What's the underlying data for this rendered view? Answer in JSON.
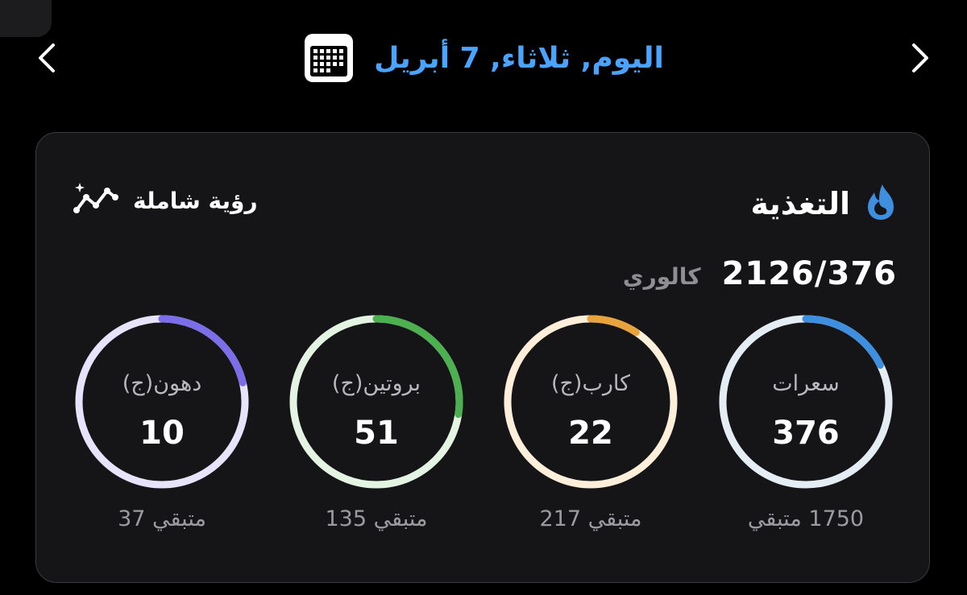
{
  "header": {
    "date_label": "اليوم, ثلاثاء, 7 أبريل",
    "accent_color": "#4aa3ff"
  },
  "nutrition": {
    "title": "التغذية",
    "overview_label": "رؤية شاملة",
    "calories_total": "2126/376",
    "calories_unit": "كالوري",
    "rings": [
      {
        "key": "calories",
        "label": "سعرات",
        "value": "376",
        "remaining": "1750 متبقي",
        "progress": 0.177,
        "color": "#3f8fe0",
        "track_color": "#e4edf4"
      },
      {
        "key": "carbs",
        "label": "كارب(ج)",
        "value": "22",
        "remaining": "متبقي 217",
        "progress": 0.092,
        "color": "#e8a33c",
        "track_color": "#fdefd9"
      },
      {
        "key": "protein",
        "label": "بروتين(ج)",
        "value": "51",
        "remaining": "متبقي 135",
        "progress": 0.274,
        "color": "#4caf50",
        "track_color": "#e3f4e2"
      },
      {
        "key": "fat",
        "label": "دهون(ج)",
        "value": "10",
        "remaining": "متبقي 37",
        "progress": 0.213,
        "color": "#7b6ee8",
        "track_color": "#e6e3fb"
      }
    ]
  }
}
